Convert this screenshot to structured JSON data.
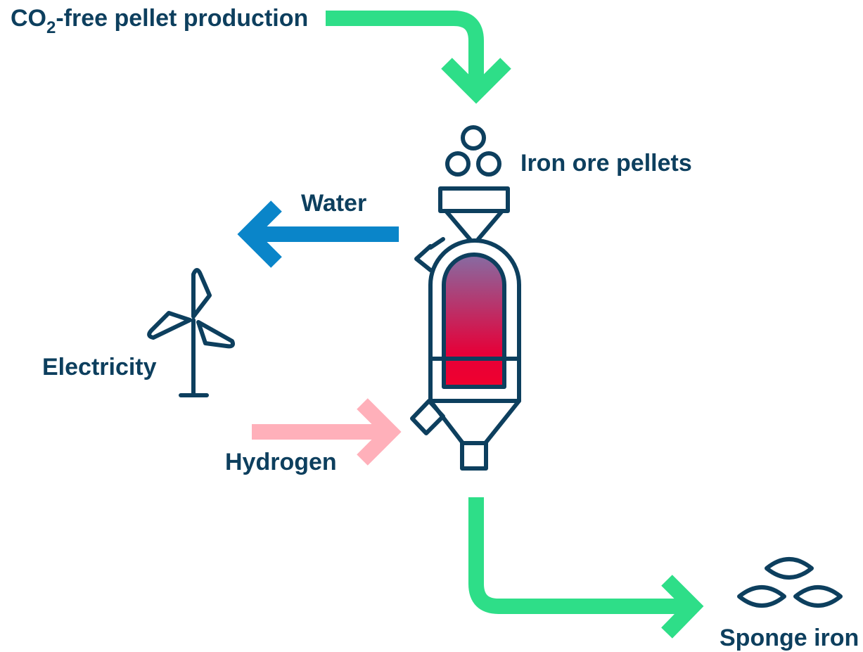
{
  "title": {
    "main": "CO",
    "sub": "2",
    "rest": "-free pellet production"
  },
  "labels": {
    "pellets": "Iron ore pellets",
    "water": "Water",
    "electricity": "Electricity",
    "hydrogen": "Hydrogen",
    "sponge": "Sponge iron"
  }
}
